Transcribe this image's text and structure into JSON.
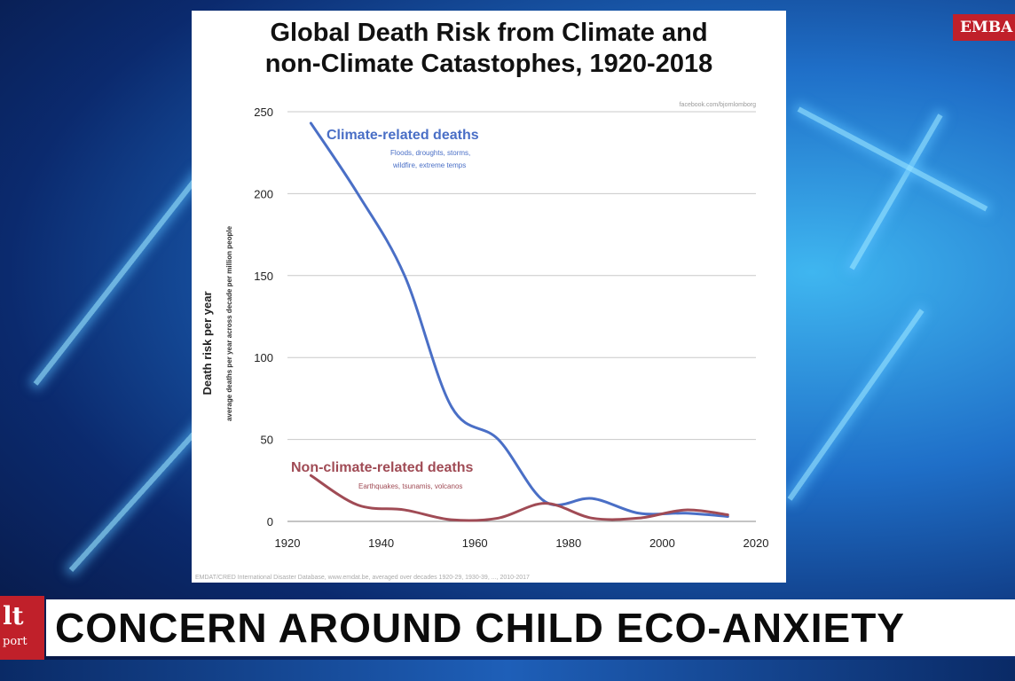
{
  "slide": {
    "title_line1": "Global Death Risk from Climate and",
    "title_line2": "non-Climate Catastophes, 1920-2018",
    "watermark": "facebook.com/bjornlomborg",
    "source": "EMDAT/CRED International Disaster Database, www.emdat.be, averaged over decades 1920-29, 1930-39, ..., 2010-2017"
  },
  "chart_data": {
    "type": "line",
    "ylabel": "Death risk per year",
    "ylabel_sub": "average deaths per year across decade per million people",
    "xlim": [
      1920,
      2020
    ],
    "ylim": [
      0,
      250
    ],
    "x_ticks": [
      1920,
      1940,
      1960,
      1980,
      2000,
      2020
    ],
    "y_ticks": [
      0,
      50,
      100,
      150,
      200,
      250
    ],
    "grid": "horizontal",
    "series": [
      {
        "name": "Climate-related deaths",
        "sublabel_line1": "Floods, droughts, storms,",
        "sublabel_line2": "wildfire, extreme temps",
        "color": "#4a6fc6",
        "x": [
          1925,
          1935,
          1945,
          1955,
          1965,
          1975,
          1985,
          1995,
          2005,
          2014
        ],
        "y": [
          243,
          200,
          150,
          70,
          50,
          12,
          14,
          5,
          5,
          3
        ]
      },
      {
        "name": "Non-climate-related deaths",
        "sublabel": "Earthquakes, tsunamis, volcanos",
        "color": "#a04b55",
        "x": [
          1925,
          1935,
          1945,
          1955,
          1965,
          1975,
          1985,
          1995,
          2005,
          2014
        ],
        "y": [
          28,
          10,
          7,
          1,
          2,
          11,
          2,
          2,
          7,
          4
        ]
      }
    ]
  },
  "overlay": {
    "corner_tag": "EMBA",
    "logo_line1": "lt",
    "logo_line2": "port",
    "headline": "CONCERN AROUND CHILD ECO-ANXIETY"
  }
}
